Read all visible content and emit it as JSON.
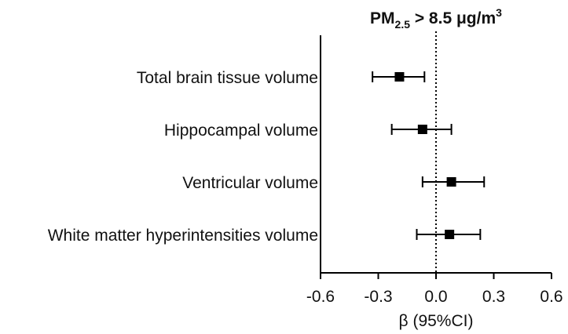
{
  "chart_data": {
    "type": "forest",
    "title_parts": [
      "PM",
      "2.5",
      " > 8.5 μg/m",
      "3"
    ],
    "categories": [
      "Total brain tissue volume",
      "Hippocampal volume",
      "Ventricular volume",
      "White matter hyperintensities volume"
    ],
    "values": [
      -0.19,
      -0.07,
      0.08,
      0.07
    ],
    "lower": [
      -0.33,
      -0.23,
      -0.07,
      -0.1
    ],
    "upper": [
      -0.06,
      0.08,
      0.25,
      0.23
    ],
    "color": "#000000",
    "xlim": [
      -0.6,
      0.6
    ],
    "xticks": [
      -0.6,
      -0.3,
      {
        "value": 0,
        "label": "0.0"
      },
      0.3,
      0.6
    ],
    "xlabel": "β (95%CI)",
    "reference_line": 0
  }
}
